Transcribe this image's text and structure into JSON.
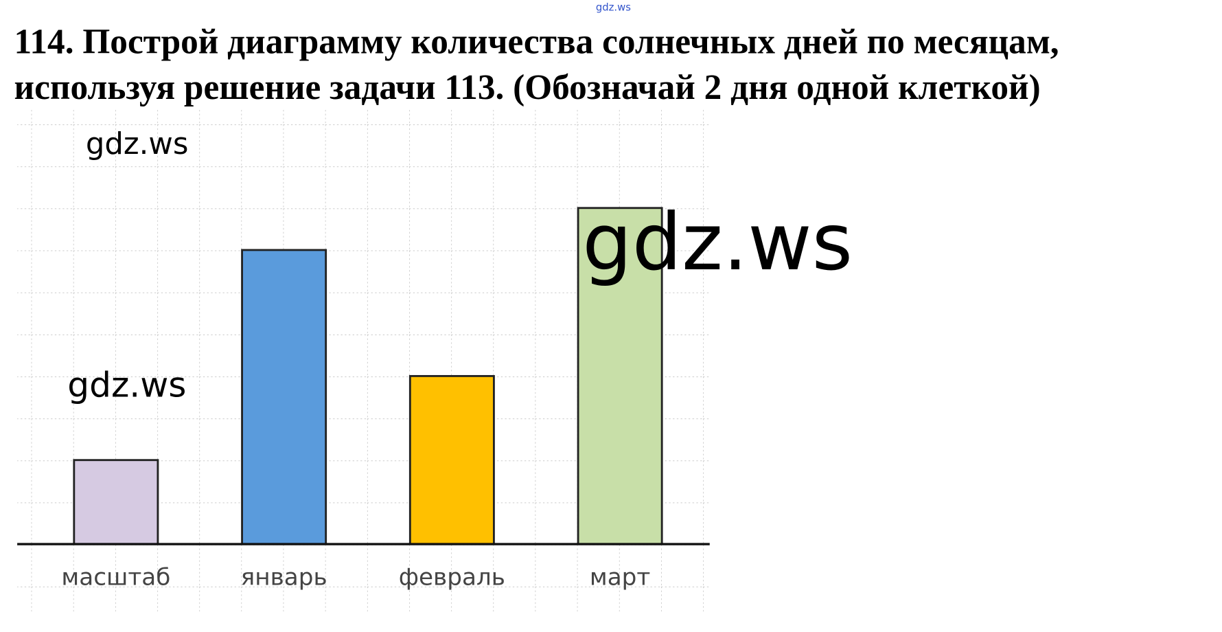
{
  "chart_data": {
    "type": "bar",
    "title_lines": [
      "114. Построй диаграмму количества солнечных дней по месяцам,",
      "используя решение задачи 113. (Обозначай 2 дня одной клеткой)"
    ],
    "categories": [
      "масштаб",
      "январь",
      "февраль",
      "март"
    ],
    "values": [
      2,
      7,
      4,
      8
    ],
    "colors": [
      "#d6cae2",
      "#5a9bdc",
      "#ffc000",
      "#c8dfa8"
    ],
    "ylim": [
      0,
      10
    ],
    "watermarks": [
      "gdz.ws",
      "gdz.ws",
      "gdz.ws",
      "gdz.ws"
    ]
  }
}
